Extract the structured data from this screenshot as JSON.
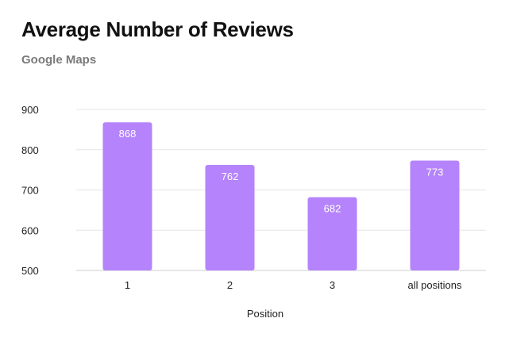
{
  "chart_data": {
    "type": "bar",
    "title": "Average Number of Reviews",
    "subtitle": "Google Maps",
    "xlabel": "Position",
    "ylabel": "",
    "categories": [
      "1",
      "2",
      "3",
      "all positions"
    ],
    "values": [
      868,
      762,
      682,
      773
    ],
    "ylim": [
      500,
      900
    ],
    "yticks": [
      500,
      600,
      700,
      800,
      900
    ],
    "grid": true,
    "bar_color": "#b583fb",
    "data_labels": [
      "868",
      "762",
      "682",
      "773"
    ]
  }
}
